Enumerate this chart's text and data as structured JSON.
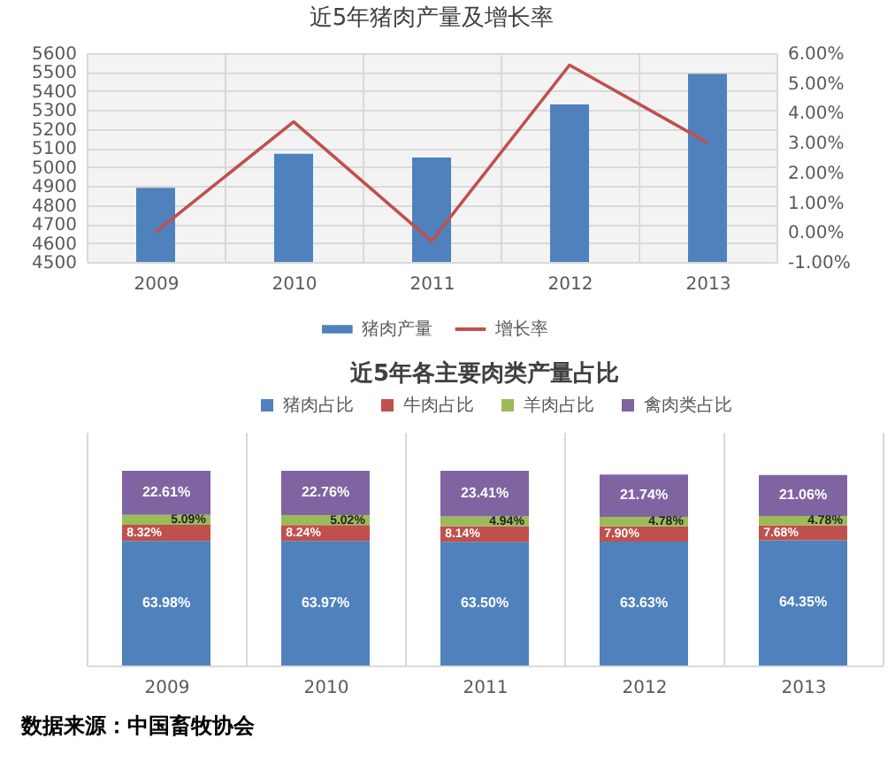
{
  "chart_data": [
    {
      "type": "bar",
      "title": "近5年猪肉产量及增长率",
      "categories": [
        "2009",
        "2010",
        "2011",
        "2012",
        "2013"
      ],
      "series": [
        {
          "name": "猪肉产量",
          "type": "bar",
          "color": "#4f81bd",
          "values": [
            4890,
            5070,
            5050,
            5330,
            5490
          ]
        },
        {
          "name": "增长率",
          "type": "line",
          "axis": "y2",
          "color": "#c0504d",
          "values": [
            0.0,
            3.7,
            -0.3,
            5.6,
            3.0
          ]
        }
      ],
      "ylim": [
        4500,
        5600
      ],
      "yticks": [
        4500,
        4600,
        4700,
        4800,
        4900,
        5000,
        5100,
        5200,
        5300,
        5400,
        5500,
        5600
      ],
      "y2lim": [
        -1,
        6
      ],
      "y2ticks": [
        {
          "value": -1,
          "label": "-1.00%"
        },
        {
          "value": 0,
          "label": "0.00%"
        },
        {
          "value": 1,
          "label": "1.00%"
        },
        {
          "value": 2,
          "label": "2.00%"
        },
        {
          "value": 3,
          "label": "3.00%"
        },
        {
          "value": 4,
          "label": "4.00%"
        },
        {
          "value": 5,
          "label": "5.00%"
        },
        {
          "value": 6,
          "label": "6.00%"
        }
      ],
      "grid": true,
      "legend": "bottom"
    },
    {
      "type": "bar",
      "title": "近5年各主要肉类产量占比",
      "categories": [
        "2009",
        "2010",
        "2011",
        "2012",
        "2013"
      ],
      "stacked": true,
      "series": [
        {
          "name": "猪肉占比",
          "color": "#4f81bd",
          "values": [
            63.98,
            63.97,
            63.5,
            63.63,
            64.35
          ],
          "value_labels": [
            "63.98%",
            "63.97%",
            "63.50%",
            "63.63%",
            "64.35%"
          ]
        },
        {
          "name": "牛肉占比",
          "color": "#c0504d",
          "values": [
            8.32,
            8.24,
            8.14,
            7.9,
            7.68
          ],
          "value_labels": [
            "8.32%",
            "8.24%",
            "8.14%",
            "7.90%",
            "7.68%"
          ]
        },
        {
          "name": "羊肉占比",
          "color": "#9bbb59",
          "values": [
            5.09,
            5.02,
            4.94,
            4.78,
            4.78
          ],
          "value_labels": [
            "5.09%",
            "5.02%",
            "4.94%",
            "4.78%",
            "4.78%"
          ]
        },
        {
          "name": "禽肉类占比",
          "color": "#8064a2",
          "values": [
            22.61,
            22.76,
            23.41,
            21.74,
            21.06
          ],
          "value_labels": [
            "22.61%",
            "22.76%",
            "23.41%",
            "21.74%",
            "21.06%"
          ]
        }
      ],
      "ylim": [
        0,
        120
      ],
      "tick_labels": "x",
      "grid": "x",
      "legend": "top",
      "annotations": [
        "数据来源：中国畜牧协会"
      ]
    }
  ]
}
